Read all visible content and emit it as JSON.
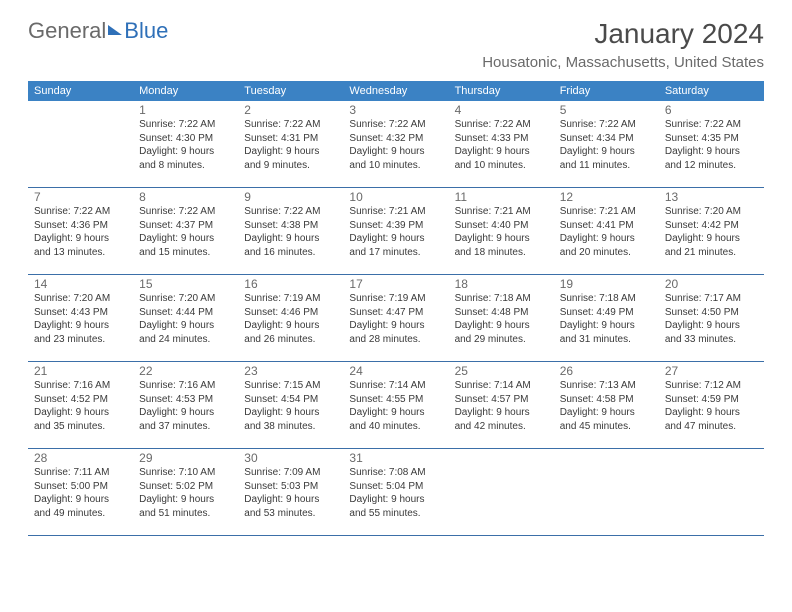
{
  "logo": {
    "part1": "General",
    "part2": "Blue"
  },
  "title": "January 2024",
  "location": "Housatonic, Massachusetts, United States",
  "colors": {
    "header_bg": "#3b82c4",
    "header_text": "#ffffff",
    "row_border": "#3b6fa8",
    "title_color": "#4a4a4a",
    "subtitle_color": "#6a6a6a",
    "body_text": "#3a3a3a",
    "logo_gray": "#6a6a6a",
    "logo_blue": "#2f70b8",
    "background": "#ffffff"
  },
  "typography": {
    "title_fontsize": 28,
    "location_fontsize": 15,
    "dayheader_fontsize": 11,
    "daynum_fontsize": 12,
    "info_fontsize": 10,
    "font_family": "Arial"
  },
  "layout": {
    "columns": 7,
    "cell_min_height": 86
  },
  "dayNames": [
    "Sunday",
    "Monday",
    "Tuesday",
    "Wednesday",
    "Thursday",
    "Friday",
    "Saturday"
  ],
  "weeks": [
    [
      {
        "day": "",
        "sunrise": "",
        "sunset": "",
        "daylight1": "",
        "daylight2": ""
      },
      {
        "day": "1",
        "sunrise": "Sunrise: 7:22 AM",
        "sunset": "Sunset: 4:30 PM",
        "daylight1": "Daylight: 9 hours",
        "daylight2": "and 8 minutes."
      },
      {
        "day": "2",
        "sunrise": "Sunrise: 7:22 AM",
        "sunset": "Sunset: 4:31 PM",
        "daylight1": "Daylight: 9 hours",
        "daylight2": "and 9 minutes."
      },
      {
        "day": "3",
        "sunrise": "Sunrise: 7:22 AM",
        "sunset": "Sunset: 4:32 PM",
        "daylight1": "Daylight: 9 hours",
        "daylight2": "and 10 minutes."
      },
      {
        "day": "4",
        "sunrise": "Sunrise: 7:22 AM",
        "sunset": "Sunset: 4:33 PM",
        "daylight1": "Daylight: 9 hours",
        "daylight2": "and 10 minutes."
      },
      {
        "day": "5",
        "sunrise": "Sunrise: 7:22 AM",
        "sunset": "Sunset: 4:34 PM",
        "daylight1": "Daylight: 9 hours",
        "daylight2": "and 11 minutes."
      },
      {
        "day": "6",
        "sunrise": "Sunrise: 7:22 AM",
        "sunset": "Sunset: 4:35 PM",
        "daylight1": "Daylight: 9 hours",
        "daylight2": "and 12 minutes."
      }
    ],
    [
      {
        "day": "7",
        "sunrise": "Sunrise: 7:22 AM",
        "sunset": "Sunset: 4:36 PM",
        "daylight1": "Daylight: 9 hours",
        "daylight2": "and 13 minutes."
      },
      {
        "day": "8",
        "sunrise": "Sunrise: 7:22 AM",
        "sunset": "Sunset: 4:37 PM",
        "daylight1": "Daylight: 9 hours",
        "daylight2": "and 15 minutes."
      },
      {
        "day": "9",
        "sunrise": "Sunrise: 7:22 AM",
        "sunset": "Sunset: 4:38 PM",
        "daylight1": "Daylight: 9 hours",
        "daylight2": "and 16 minutes."
      },
      {
        "day": "10",
        "sunrise": "Sunrise: 7:21 AM",
        "sunset": "Sunset: 4:39 PM",
        "daylight1": "Daylight: 9 hours",
        "daylight2": "and 17 minutes."
      },
      {
        "day": "11",
        "sunrise": "Sunrise: 7:21 AM",
        "sunset": "Sunset: 4:40 PM",
        "daylight1": "Daylight: 9 hours",
        "daylight2": "and 18 minutes."
      },
      {
        "day": "12",
        "sunrise": "Sunrise: 7:21 AM",
        "sunset": "Sunset: 4:41 PM",
        "daylight1": "Daylight: 9 hours",
        "daylight2": "and 20 minutes."
      },
      {
        "day": "13",
        "sunrise": "Sunrise: 7:20 AM",
        "sunset": "Sunset: 4:42 PM",
        "daylight1": "Daylight: 9 hours",
        "daylight2": "and 21 minutes."
      }
    ],
    [
      {
        "day": "14",
        "sunrise": "Sunrise: 7:20 AM",
        "sunset": "Sunset: 4:43 PM",
        "daylight1": "Daylight: 9 hours",
        "daylight2": "and 23 minutes."
      },
      {
        "day": "15",
        "sunrise": "Sunrise: 7:20 AM",
        "sunset": "Sunset: 4:44 PM",
        "daylight1": "Daylight: 9 hours",
        "daylight2": "and 24 minutes."
      },
      {
        "day": "16",
        "sunrise": "Sunrise: 7:19 AM",
        "sunset": "Sunset: 4:46 PM",
        "daylight1": "Daylight: 9 hours",
        "daylight2": "and 26 minutes."
      },
      {
        "day": "17",
        "sunrise": "Sunrise: 7:19 AM",
        "sunset": "Sunset: 4:47 PM",
        "daylight1": "Daylight: 9 hours",
        "daylight2": "and 28 minutes."
      },
      {
        "day": "18",
        "sunrise": "Sunrise: 7:18 AM",
        "sunset": "Sunset: 4:48 PM",
        "daylight1": "Daylight: 9 hours",
        "daylight2": "and 29 minutes."
      },
      {
        "day": "19",
        "sunrise": "Sunrise: 7:18 AM",
        "sunset": "Sunset: 4:49 PM",
        "daylight1": "Daylight: 9 hours",
        "daylight2": "and 31 minutes."
      },
      {
        "day": "20",
        "sunrise": "Sunrise: 7:17 AM",
        "sunset": "Sunset: 4:50 PM",
        "daylight1": "Daylight: 9 hours",
        "daylight2": "and 33 minutes."
      }
    ],
    [
      {
        "day": "21",
        "sunrise": "Sunrise: 7:16 AM",
        "sunset": "Sunset: 4:52 PM",
        "daylight1": "Daylight: 9 hours",
        "daylight2": "and 35 minutes."
      },
      {
        "day": "22",
        "sunrise": "Sunrise: 7:16 AM",
        "sunset": "Sunset: 4:53 PM",
        "daylight1": "Daylight: 9 hours",
        "daylight2": "and 37 minutes."
      },
      {
        "day": "23",
        "sunrise": "Sunrise: 7:15 AM",
        "sunset": "Sunset: 4:54 PM",
        "daylight1": "Daylight: 9 hours",
        "daylight2": "and 38 minutes."
      },
      {
        "day": "24",
        "sunrise": "Sunrise: 7:14 AM",
        "sunset": "Sunset: 4:55 PM",
        "daylight1": "Daylight: 9 hours",
        "daylight2": "and 40 minutes."
      },
      {
        "day": "25",
        "sunrise": "Sunrise: 7:14 AM",
        "sunset": "Sunset: 4:57 PM",
        "daylight1": "Daylight: 9 hours",
        "daylight2": "and 42 minutes."
      },
      {
        "day": "26",
        "sunrise": "Sunrise: 7:13 AM",
        "sunset": "Sunset: 4:58 PM",
        "daylight1": "Daylight: 9 hours",
        "daylight2": "and 45 minutes."
      },
      {
        "day": "27",
        "sunrise": "Sunrise: 7:12 AM",
        "sunset": "Sunset: 4:59 PM",
        "daylight1": "Daylight: 9 hours",
        "daylight2": "and 47 minutes."
      }
    ],
    [
      {
        "day": "28",
        "sunrise": "Sunrise: 7:11 AM",
        "sunset": "Sunset: 5:00 PM",
        "daylight1": "Daylight: 9 hours",
        "daylight2": "and 49 minutes."
      },
      {
        "day": "29",
        "sunrise": "Sunrise: 7:10 AM",
        "sunset": "Sunset: 5:02 PM",
        "daylight1": "Daylight: 9 hours",
        "daylight2": "and 51 minutes."
      },
      {
        "day": "30",
        "sunrise": "Sunrise: 7:09 AM",
        "sunset": "Sunset: 5:03 PM",
        "daylight1": "Daylight: 9 hours",
        "daylight2": "and 53 minutes."
      },
      {
        "day": "31",
        "sunrise": "Sunrise: 7:08 AM",
        "sunset": "Sunset: 5:04 PM",
        "daylight1": "Daylight: 9 hours",
        "daylight2": "and 55 minutes."
      },
      {
        "day": "",
        "sunrise": "",
        "sunset": "",
        "daylight1": "",
        "daylight2": ""
      },
      {
        "day": "",
        "sunrise": "",
        "sunset": "",
        "daylight1": "",
        "daylight2": ""
      },
      {
        "day": "",
        "sunrise": "",
        "sunset": "",
        "daylight1": "",
        "daylight2": ""
      }
    ]
  ]
}
